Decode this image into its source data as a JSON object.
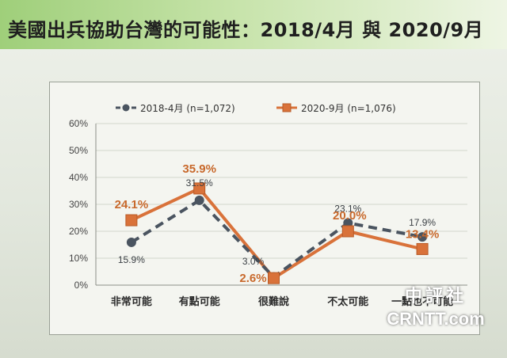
{
  "slide": {
    "title": "美國出兵協助台灣的可能性：2018/4月 與 2020/9月"
  },
  "watermark": {
    "cn": "中評社",
    "en": "CRNTT.com"
  },
  "colors": {
    "series_2018": "#4a5460",
    "series_2020": "#d9723a",
    "label_2020": "#c8692c",
    "grid": "#d2d6cc"
  },
  "chart_data": {
    "type": "line",
    "categories": [
      "非常可能",
      "有點可能",
      "很難說",
      "不太可能",
      "一點也不可能"
    ],
    "y_ticks": [
      "0%",
      "10%",
      "20%",
      "30%",
      "40%",
      "50%",
      "60%"
    ],
    "ylim": [
      0,
      60
    ],
    "grid": "horizontal",
    "legend_position": "top",
    "series": [
      {
        "name": "2018-4月 (n=1,072)",
        "values": [
          15.9,
          31.5,
          3.0,
          23.1,
          17.9
        ],
        "labels": [
          "15.9%",
          "31.5%",
          "3.0%",
          "23.1%",
          "17.9%"
        ],
        "style": "dashed",
        "marker": "circle"
      },
      {
        "name": "2020-9月 (n=1,076)",
        "values": [
          24.1,
          35.9,
          2.6,
          20.0,
          13.4
        ],
        "labels": [
          "24.1%",
          "35.9%",
          "2.6%",
          "20.0%",
          "13.4%"
        ],
        "style": "solid",
        "marker": "square"
      }
    ]
  }
}
